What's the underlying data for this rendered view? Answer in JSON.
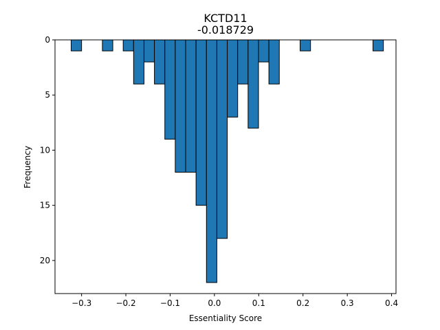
{
  "chart_data": {
    "type": "bar",
    "title": "KCTD11",
    "subtitle": "-0.018729",
    "xlabel": "Essentiality Score",
    "ylabel": "Frequency",
    "xlim": [
      -0.36,
      0.41
    ],
    "ylim": [
      23,
      0
    ],
    "y_inverted": true,
    "grid": false,
    "x_ticks": [
      -0.3,
      -0.2,
      -0.1,
      0.0,
      0.1,
      0.2,
      0.3,
      0.4
    ],
    "x_tick_labels": [
      "−0.3",
      "−0.2",
      "−0.1",
      "0.0",
      "0.1",
      "0.2",
      "0.3",
      "0.4"
    ],
    "y_ticks": [
      0,
      5,
      10,
      15,
      20
    ],
    "y_tick_labels": [
      "0",
      "5",
      "10",
      "15",
      "20"
    ],
    "bin_width": 0.0235,
    "bins": [
      {
        "x0": -0.3235,
        "count": 1
      },
      {
        "x0": -0.253,
        "count": 1
      },
      {
        "x0": -0.206,
        "count": 1
      },
      {
        "x0": -0.1825,
        "count": 4
      },
      {
        "x0": -0.159,
        "count": 2
      },
      {
        "x0": -0.1355,
        "count": 4
      },
      {
        "x0": -0.112,
        "count": 9
      },
      {
        "x0": -0.0885,
        "count": 12
      },
      {
        "x0": -0.065,
        "count": 12
      },
      {
        "x0": -0.0415,
        "count": 15
      },
      {
        "x0": -0.018,
        "count": 22
      },
      {
        "x0": 0.0055,
        "count": 18
      },
      {
        "x0": 0.029,
        "count": 7
      },
      {
        "x0": 0.0525,
        "count": 4
      },
      {
        "x0": 0.076,
        "count": 8
      },
      {
        "x0": 0.0995,
        "count": 2
      },
      {
        "x0": 0.123,
        "count": 4
      },
      {
        "x0": 0.1935,
        "count": 1
      },
      {
        "x0": 0.358,
        "count": 1
      }
    ],
    "bar_color": "#1f77b4",
    "edge_color": "#000000"
  }
}
